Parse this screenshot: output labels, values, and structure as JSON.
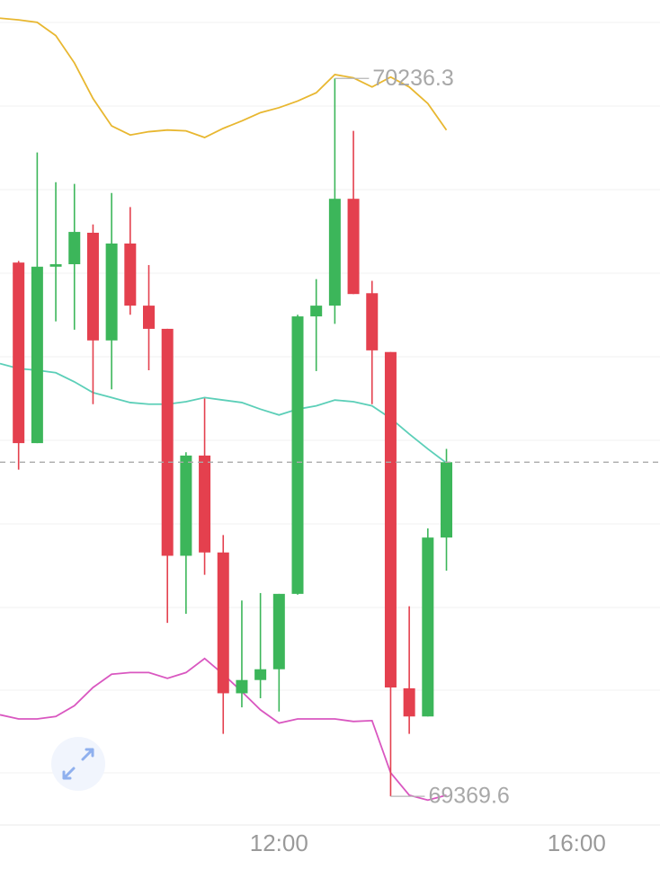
{
  "chart_data": {
    "type": "candlestick",
    "x": [
      8.5,
      8.75,
      9.0,
      9.25,
      9.5,
      9.75,
      10.0,
      10.25,
      10.5,
      10.75,
      11.0,
      11.25,
      11.5,
      11.75,
      12.0,
      12.25,
      12.5,
      12.75,
      13.0,
      13.25,
      13.5,
      13.75,
      14.0,
      14.25
    ],
    "open": [
      70014,
      69796,
      70009,
      70012,
      70050,
      69920,
      70037,
      69962,
      69934,
      69660,
      69781,
      69664,
      69494,
      69510,
      69523,
      69614,
      69949,
      69962,
      70091,
      69977,
      69906,
      69500,
      69466,
      69682
    ],
    "high": [
      70016,
      70147,
      70111,
      70109,
      70060,
      70098,
      70081,
      70011,
      69934,
      69785,
      69850,
      69685,
      69606,
      69615,
      69614,
      69951,
      69994,
      70236.3,
      70173,
      69992,
      69906,
      69599,
      69693,
      69789
    ],
    "low": [
      69764,
      69796,
      69943,
      69933,
      69843,
      69861,
      69951,
      69884,
      69579,
      69590,
      69637,
      69445,
      69477,
      69488,
      69472,
      69613,
      69883,
      69940,
      69976,
      69843,
      69369.6,
      69445,
      69466,
      69642
    ],
    "close": [
      69796,
      70009,
      70012,
      70051,
      69920,
      70037,
      69962,
      69934,
      69660,
      69781,
      69664,
      69494,
      69510,
      69523,
      69614,
      69949,
      69962,
      70091,
      69976,
      69908,
      69501,
      69466,
      69682,
      69773
    ],
    "up_color": "#3cb65a",
    "down_color": "#e4404e",
    "overlay_x": [
      8.25,
      8.5,
      8.75,
      9.0,
      9.25,
      9.5,
      9.75,
      10.0,
      10.25,
      10.5,
      10.75,
      11.0,
      11.25,
      11.5,
      11.75,
      12.0,
      12.25,
      12.5,
      12.75,
      13.0,
      13.25,
      13.5,
      13.75,
      14.0,
      14.25
    ],
    "overlays": [
      {
        "color": "#e8b730",
        "values": [
          70309,
          70307,
          70304,
          70288,
          70255,
          70212,
          70179,
          70168,
          70172,
          70174,
          70173,
          70165,
          70176,
          70185,
          70195,
          70201,
          70209,
          70219,
          70241,
          70237,
          70226,
          70238,
          70226,
          70206,
          70174
        ]
      },
      {
        "color": "#5ccfb8",
        "values": [
          69892,
          69886,
          69884,
          69881,
          69870,
          69857,
          69851,
          69845,
          69843,
          69843,
          69846,
          69851,
          69848,
          69845,
          69837,
          69830,
          69837,
          69841,
          69848,
          69846,
          69841,
          69826,
          69807,
          69789,
          69772
        ]
      },
      {
        "color": "#d957c0",
        "values": [
          69468,
          69463,
          69463,
          69466,
          69479,
          69501,
          69517,
          69519,
          69519,
          69512,
          69519,
          69536,
          69517,
          69496,
          69474,
          69458,
          69463,
          69463,
          69463,
          69460,
          69461,
          69398,
          69371,
          69365,
          69371
        ]
      }
    ],
    "annotations": [
      {
        "x": 12.75,
        "value": 70236.3
      },
      {
        "x": 13.5,
        "value": 69369.6
      }
    ],
    "xlim": [
      8.25,
      17.12
    ],
    "ylim": [
      69335,
      70331
    ],
    "xticks": [
      {
        "value": 12,
        "label": "12:00"
      },
      {
        "value": 16,
        "label": "16:00"
      }
    ]
  }
}
